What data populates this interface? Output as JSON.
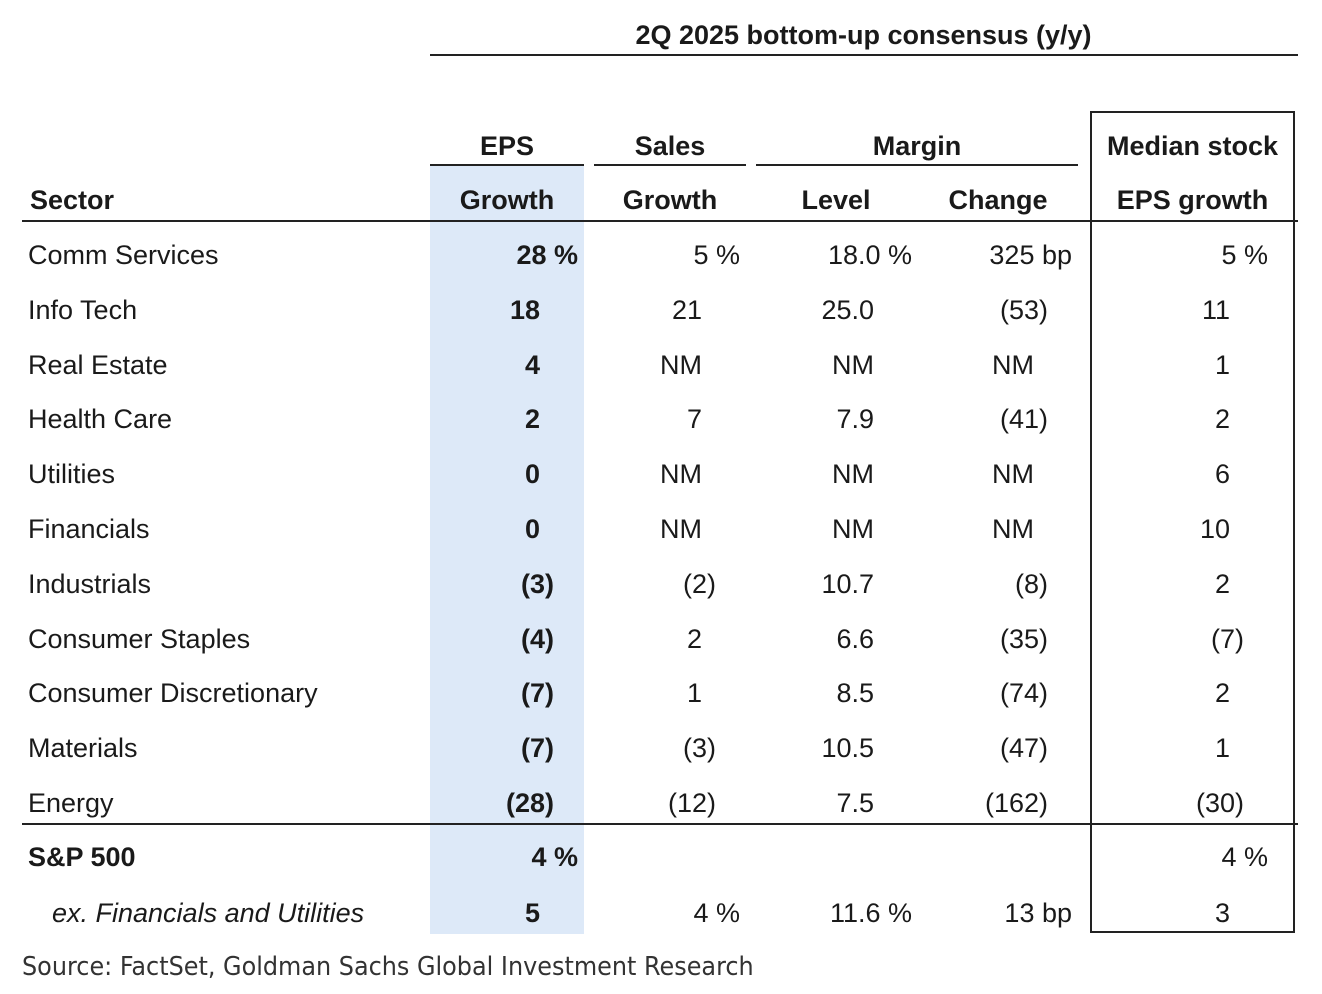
{
  "chart_data": {
    "type": "table",
    "title": "2Q 2025 bottom-up consensus (y/y)",
    "column_groups": [
      {
        "label": "EPS"
      },
      {
        "label": "Sales"
      },
      {
        "label": "Margin"
      },
      {
        "label": "Median stock"
      }
    ],
    "columns": [
      "Sector",
      "Growth",
      "Growth",
      "Level",
      "Change",
      "EPS growth"
    ],
    "rows": [
      {
        "sector": "Comm Services",
        "eps": "28 %",
        "sales": "5 %",
        "level": "18.0 %",
        "change": "325 bp",
        "median": "5 %"
      },
      {
        "sector": "Info Tech",
        "eps": "18",
        "sales": "21",
        "level": "25.0",
        "change": "(53)",
        "median": "11"
      },
      {
        "sector": "Real Estate",
        "eps": "4",
        "sales": "NM",
        "level": "NM",
        "change": "NM",
        "median": "1"
      },
      {
        "sector": "Health Care",
        "eps": "2",
        "sales": "7",
        "level": "7.9",
        "change": "(41)",
        "median": "2"
      },
      {
        "sector": "Utilities",
        "eps": "0",
        "sales": "NM",
        "level": "NM",
        "change": "NM",
        "median": "6"
      },
      {
        "sector": "Financials",
        "eps": "0",
        "sales": "NM",
        "level": "NM",
        "change": "NM",
        "median": "10"
      },
      {
        "sector": "Industrials",
        "eps": "(3)",
        "sales": "(2)",
        "level": "10.7",
        "change": "(8)",
        "median": "2"
      },
      {
        "sector": "Consumer Staples",
        "eps": "(4)",
        "sales": "2",
        "level": "6.6",
        "change": "(35)",
        "median": "(7)"
      },
      {
        "sector": "Consumer Discretionary",
        "eps": "(7)",
        "sales": "1",
        "level": "8.5",
        "change": "(74)",
        "median": "2"
      },
      {
        "sector": "Materials",
        "eps": "(7)",
        "sales": "(3)",
        "level": "10.5",
        "change": "(47)",
        "median": "1"
      },
      {
        "sector": "Energy",
        "eps": "(28)",
        "sales": "(12)",
        "level": "7.5",
        "change": "(162)",
        "median": "(30)"
      }
    ],
    "summary_rows": [
      {
        "sector": "S&P 500",
        "eps": "4 %",
        "sales": "",
        "level": "",
        "change": "",
        "median": "4 %"
      },
      {
        "sector": "ex. Financials and Utilities",
        "eps": "5",
        "sales": "4 %",
        "level": "11.6 %",
        "change": "13 bp",
        "median": "3"
      }
    ],
    "highlight_color": "#dde9f8"
  },
  "source": "Source: FactSet, Goldman Sachs Global Investment Research"
}
